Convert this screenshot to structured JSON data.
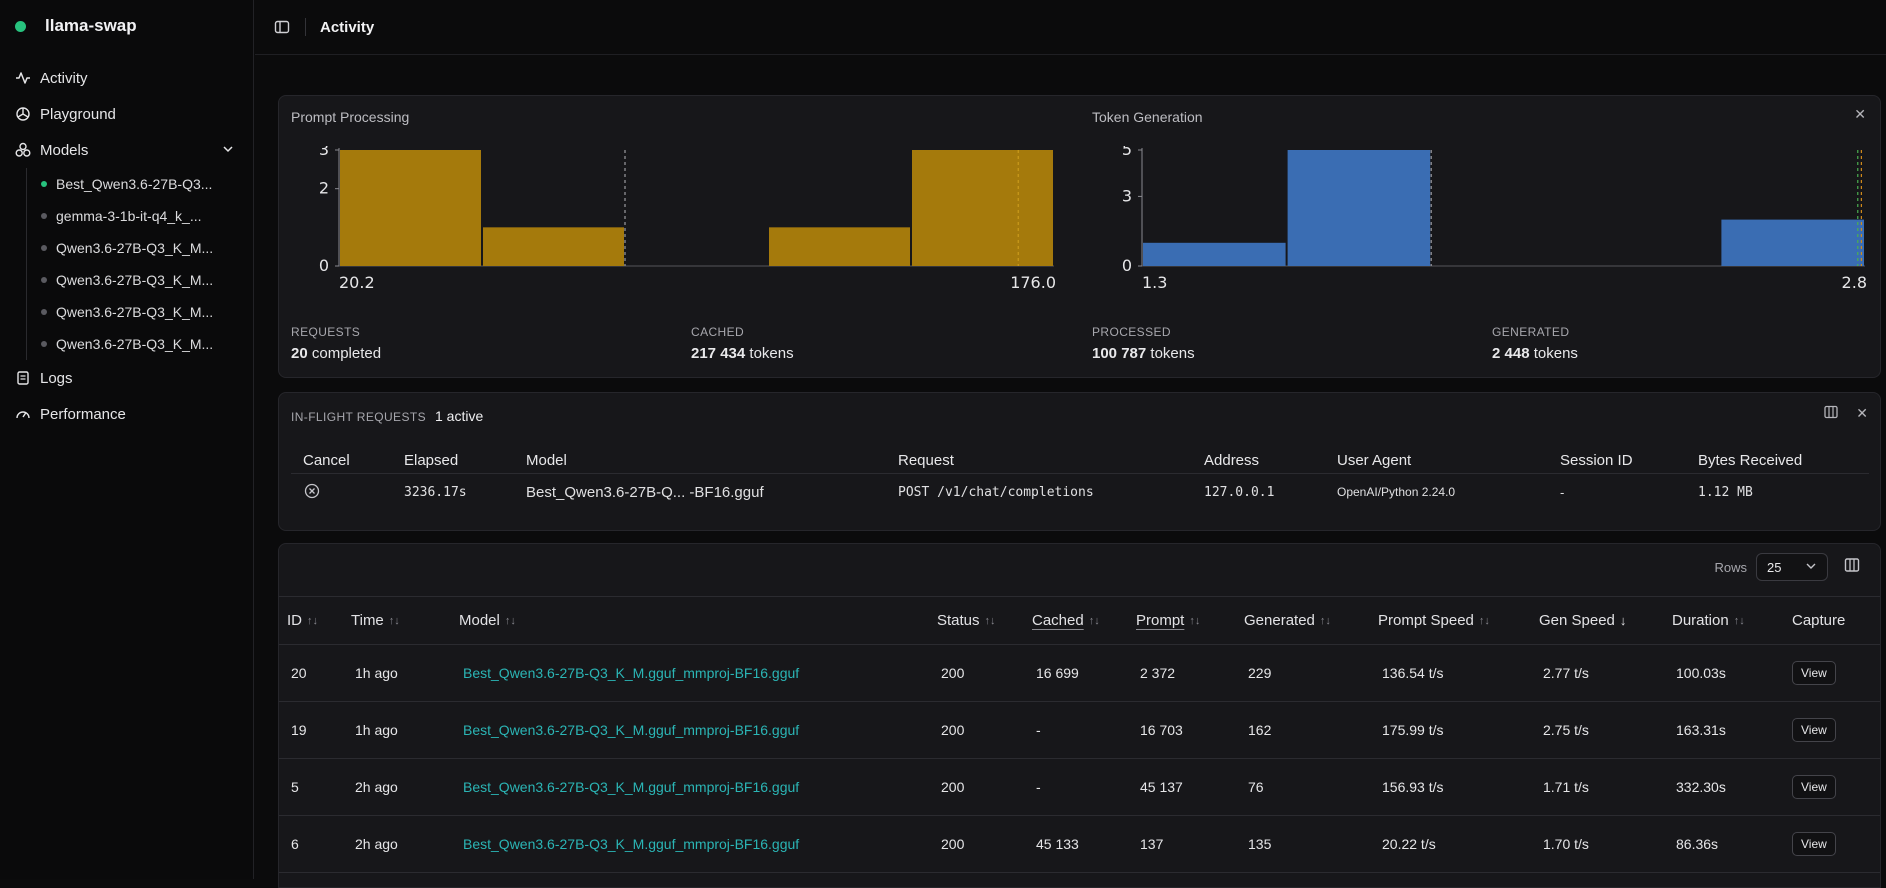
{
  "app": {
    "name": "llama-swap"
  },
  "nav": {
    "activity": "Activity",
    "playground": "Playground",
    "models": "Models",
    "model_items": [
      {
        "label": "Best_Qwen3.6-27B-Q3...",
        "active": true
      },
      {
        "label": "gemma-3-1b-it-q4_k_...",
        "active": false
      },
      {
        "label": "Qwen3.6-27B-Q3_K_M...",
        "active": false
      },
      {
        "label": "Qwen3.6-27B-Q3_K_M...",
        "active": false
      },
      {
        "label": "Qwen3.6-27B-Q3_K_M...",
        "active": false
      },
      {
        "label": "Qwen3.6-27B-Q3_K_M...",
        "active": false
      }
    ],
    "logs": "Logs",
    "performance": "Performance"
  },
  "topbar": {
    "title": "Activity"
  },
  "stats": {
    "requests_label": "REQUESTS",
    "requests_value": "20",
    "requests_unit": "completed",
    "cached_label": "CACHED",
    "cached_value": "217 434",
    "cached_unit": "tokens",
    "processed_label": "PROCESSED",
    "processed_value": "100 787",
    "processed_unit": "tokens",
    "generated_label": "GENERATED",
    "generated_value": "2 448",
    "generated_unit": "tokens"
  },
  "chart_data": [
    {
      "type": "bar",
      "title": "Prompt Processing",
      "xlim": [
        20.2,
        176.0
      ],
      "x_tick_labels": [
        "20.2",
        "176.0"
      ],
      "y_tick_labels": [
        "3",
        "2",
        "0"
      ],
      "ylim": [
        0,
        3
      ],
      "bins": 5,
      "values": [
        3,
        1,
        0,
        1,
        3
      ],
      "color": "#a57a0c"
    },
    {
      "type": "bar",
      "title": "Token Generation",
      "xlim": [
        1.3,
        2.8
      ],
      "x_tick_labels": [
        "1.3",
        "2.8"
      ],
      "y_tick_labels": [
        "5",
        "3",
        "0"
      ],
      "ylim": [
        0,
        5
      ],
      "bins": 5,
      "values": [
        1,
        5,
        0,
        0,
        2
      ],
      "color": "#3a6db3"
    }
  ],
  "inflight": {
    "label": "IN-FLIGHT REQUESTS",
    "count": "1 active",
    "columns": [
      "Cancel",
      "Elapsed",
      "Model",
      "Request",
      "Address",
      "User Agent",
      "Session ID",
      "Bytes Received"
    ],
    "rows": [
      {
        "elapsed": "3236.17s",
        "model": "Best_Qwen3.6-27B-Q... -BF16.gguf",
        "request": "POST /v1/chat/completions",
        "address": "127.0.0.1",
        "user_agent": "OpenAI/Python 2.24.0",
        "session": "-",
        "bytes": "1.12 MB"
      }
    ]
  },
  "table": {
    "rows_label": "Rows",
    "rows_value": "25",
    "columns": [
      "ID",
      "Time",
      "Model",
      "Status",
      "Cached",
      "Prompt",
      "Generated",
      "Prompt Speed",
      "Gen Speed",
      "Duration",
      "Capture"
    ],
    "view_label": "View",
    "rows": [
      {
        "id": "20",
        "time": "1h ago",
        "model": "Best_Qwen3.6-27B-Q3_K_M.gguf_mmproj-BF16.gguf",
        "status": "200",
        "cached": "16 699",
        "prompt": "2 372",
        "generated": "229",
        "prompt_speed": "136.54 t/s",
        "gen_speed": "2.77 t/s",
        "duration": "100.03s"
      },
      {
        "id": "19",
        "time": "1h ago",
        "model": "Best_Qwen3.6-27B-Q3_K_M.gguf_mmproj-BF16.gguf",
        "status": "200",
        "cached": "-",
        "prompt": "16 703",
        "generated": "162",
        "prompt_speed": "175.99 t/s",
        "gen_speed": "2.75 t/s",
        "duration": "163.31s"
      },
      {
        "id": "5",
        "time": "2h ago",
        "model": "Best_Qwen3.6-27B-Q3_K_M.gguf_mmproj-BF16.gguf",
        "status": "200",
        "cached": "-",
        "prompt": "45 137",
        "generated": "76",
        "prompt_speed": "156.93 t/s",
        "gen_speed": "1.71 t/s",
        "duration": "332.30s"
      },
      {
        "id": "6",
        "time": "2h ago",
        "model": "Best_Qwen3.6-27B-Q3_K_M.gguf_mmproj-BF16.gguf",
        "status": "200",
        "cached": "45 133",
        "prompt": "137",
        "generated": "135",
        "prompt_speed": "20.22 t/s",
        "gen_speed": "1.70 t/s",
        "duration": "86.36s"
      }
    ]
  }
}
